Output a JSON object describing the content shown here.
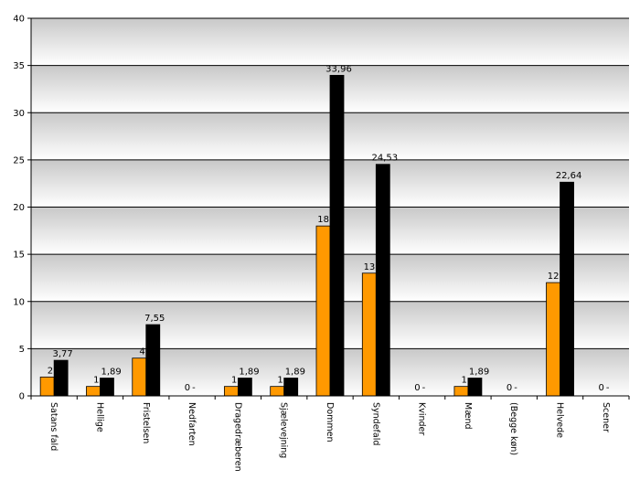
{
  "chart_data": {
    "type": "bar",
    "categories": [
      "Satans fald",
      "Hellige",
      "Fristelsen",
      "Nedfarten",
      "Dragedræberen",
      "Sjælevejning",
      "Dommen",
      "Syndefald",
      "Kvinder",
      "Mænd",
      "(Begge køn)",
      "Helvede",
      "Scener"
    ],
    "series": [
      {
        "values": [
          2,
          1,
          4,
          0,
          1,
          1,
          18,
          13,
          0,
          1,
          0,
          12,
          0
        ],
        "labels": [
          "2",
          "1",
          "4",
          "0",
          "1",
          "1",
          "18",
          "13",
          "0",
          "1",
          "0",
          "12",
          "0"
        ],
        "color": "#ff9900"
      },
      {
        "values": [
          3.77,
          1.89,
          7.55,
          0,
          1.89,
          1.89,
          33.96,
          24.53,
          0,
          1.89,
          0,
          22.64,
          0
        ],
        "labels": [
          "3,77",
          "1,89",
          "7,55",
          "-",
          "1,89",
          "1,89",
          "33,96",
          "24,53",
          "-",
          "1,89",
          "-",
          "22,64",
          "-"
        ],
        "color": "#000000"
      }
    ],
    "yticks": [
      "0",
      "5",
      "10",
      "15",
      "20",
      "25",
      "30",
      "35",
      "40"
    ],
    "ylim": [
      0,
      40
    ],
    "title": "",
    "xlabel": "",
    "ylabel": "",
    "grid": true,
    "background_gradient": [
      "#c8c8c8",
      "#ffffff"
    ]
  }
}
